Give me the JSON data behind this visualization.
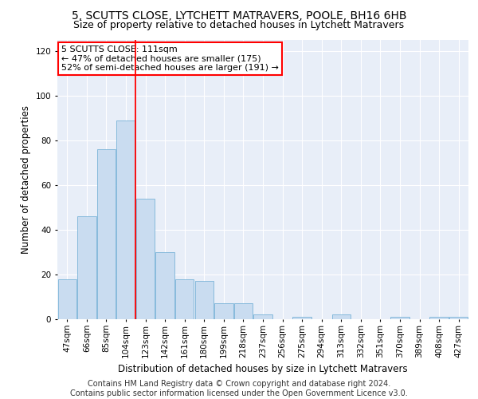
{
  "title": "5, SCUTTS CLOSE, LYTCHETT MATRAVERS, POOLE, BH16 6HB",
  "subtitle": "Size of property relative to detached houses in Lytchett Matravers",
  "xlabel": "Distribution of detached houses by size in Lytchett Matravers",
  "ylabel": "Number of detached properties",
  "footer_line1": "Contains HM Land Registry data © Crown copyright and database right 2024.",
  "footer_line2": "Contains public sector information licensed under the Open Government Licence v3.0.",
  "bar_labels": [
    "47sqm",
    "66sqm",
    "85sqm",
    "104sqm",
    "123sqm",
    "142sqm",
    "161sqm",
    "180sqm",
    "199sqm",
    "218sqm",
    "237sqm",
    "256sqm",
    "275sqm",
    "294sqm",
    "313sqm",
    "332sqm",
    "351sqm",
    "370sqm",
    "389sqm",
    "408sqm",
    "427sqm"
  ],
  "bar_values": [
    18,
    46,
    76,
    89,
    54,
    30,
    18,
    17,
    7,
    7,
    2,
    0,
    1,
    0,
    2,
    0,
    0,
    1,
    0,
    1,
    1
  ],
  "bar_color": "#c9dcf0",
  "bar_edge_color": "#7ab4d8",
  "vline_x": 3.5,
  "vline_color": "red",
  "annotation_text": "5 SCUTTS CLOSE: 111sqm\n← 47% of detached houses are smaller (175)\n52% of semi-detached houses are larger (191) →",
  "annotation_box_color": "white",
  "annotation_box_edge": "red",
  "ylim": [
    0,
    125
  ],
  "yticks": [
    0,
    20,
    40,
    60,
    80,
    100,
    120
  ],
  "background_color": "#e8eef8",
  "grid_color": "white",
  "title_fontsize": 10,
  "subtitle_fontsize": 9,
  "axis_label_fontsize": 8.5,
  "tick_fontsize": 7.5,
  "footer_fontsize": 7,
  "annotation_fontsize": 8
}
